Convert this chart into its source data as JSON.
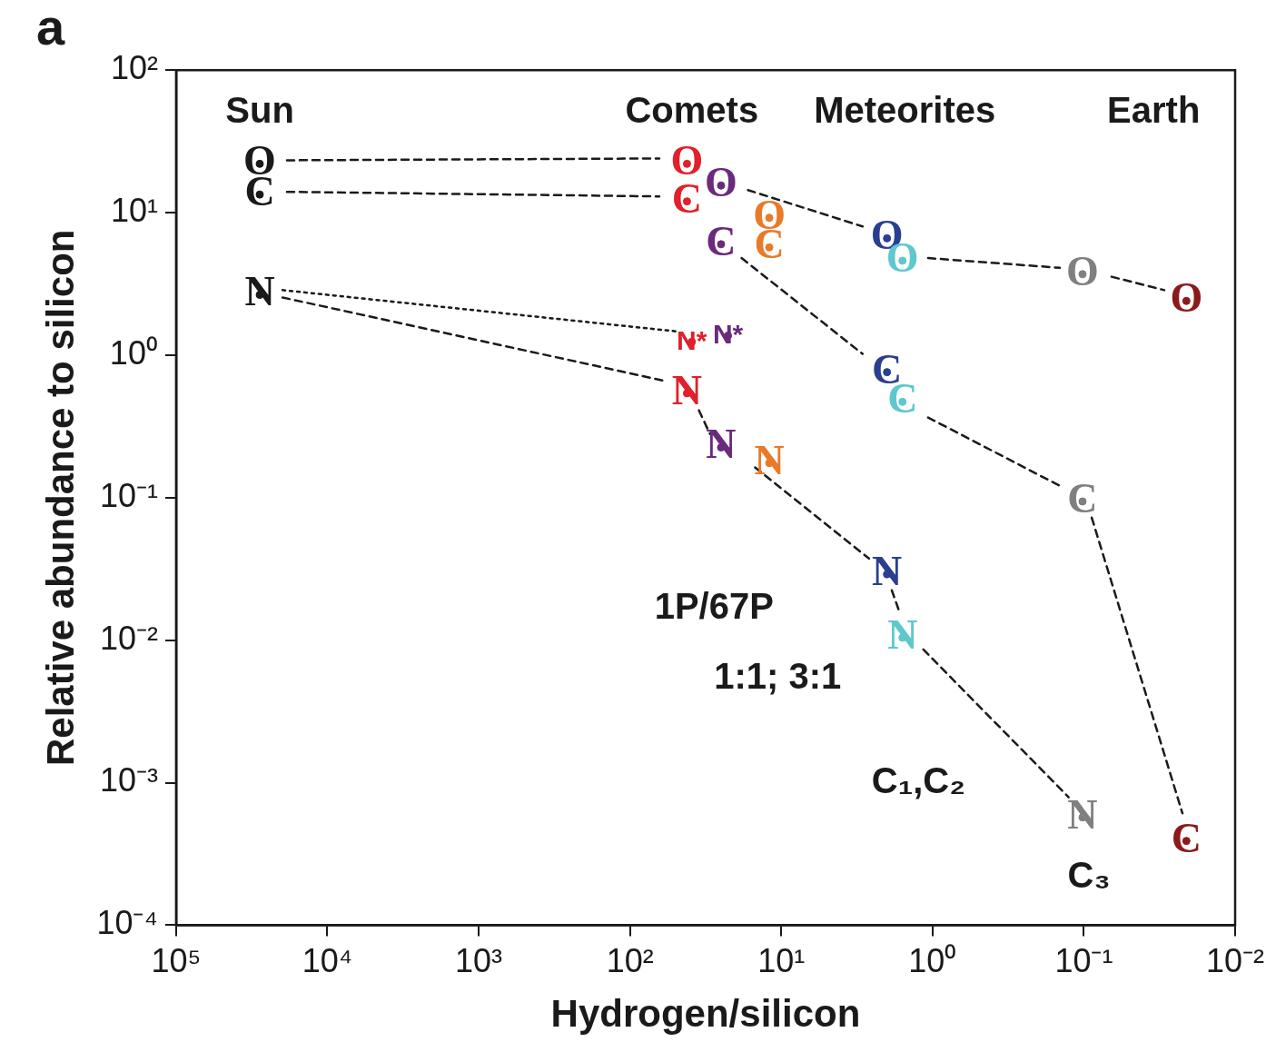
{
  "chart_data": {
    "type": "scatter",
    "title": "a",
    "xlabel": "Hydrogen/silicon",
    "ylabel": "Relative abundance to silicon",
    "log": "xy",
    "xlim": [
      100000,
      0.01
    ],
    "ylim": [
      0.0001,
      100
    ],
    "xticks": [
      {
        "value": 100000,
        "label": "10⁵"
      },
      {
        "value": 10000,
        "label": "10⁴"
      },
      {
        "value": 1000,
        "label": "10³"
      },
      {
        "value": 100,
        "label": "10²"
      },
      {
        "value": 10,
        "label": "10¹"
      },
      {
        "value": 1,
        "label": "10⁰"
      },
      {
        "value": 0.1,
        "label": "10⁻¹"
      },
      {
        "value": 0.01,
        "label": "10⁻²"
      }
    ],
    "yticks": [
      {
        "value": 0.0001,
        "label": "10⁻⁴"
      },
      {
        "value": 0.001,
        "label": "10⁻³"
      },
      {
        "value": 0.01,
        "label": "10⁻²"
      },
      {
        "value": 0.1,
        "label": "10⁻¹"
      },
      {
        "value": 1,
        "label": "10⁰"
      },
      {
        "value": 10,
        "label": "10¹"
      },
      {
        "value": 100,
        "label": "10²"
      }
    ],
    "series": [
      {
        "type": "scatter",
        "color": "#1a1a1a",
        "x": [
          28000,
          28000,
          28000
        ],
        "values": [
          22,
          13.4,
          2.65
        ],
        "value_labels": [
          "O",
          "C",
          "N"
        ]
      },
      {
        "type": "scatter",
        "color": "#e0202a",
        "x": [
          42,
          42,
          39,
          42
        ],
        "values": [
          22,
          12,
          1.24,
          0.54
        ],
        "value_labels": [
          "O",
          "C",
          "N*",
          "N"
        ]
      },
      {
        "type": "scatter",
        "color": "#6a2a7e",
        "x": [
          25,
          25,
          22.5,
          25
        ],
        "values": [
          15.5,
          6,
          1.37,
          0.225
        ],
        "value_labels": [
          "O",
          "C",
          "N*",
          "N"
        ]
      },
      {
        "type": "scatter",
        "color": "#e87a2a",
        "x": [
          12,
          12,
          12
        ],
        "values": [
          9.2,
          5.7,
          0.175
        ],
        "value_labels": [
          "O",
          "C",
          "N"
        ]
      },
      {
        "type": "scatter",
        "color": "#2a3f8f",
        "x": [
          2,
          2,
          2
        ],
        "values": [
          6.6,
          0.76,
          0.029
        ],
        "value_labels": [
          "O",
          "C",
          "N"
        ]
      },
      {
        "type": "scatter",
        "color": "#5ec8cc",
        "x": [
          1.58,
          1.58,
          1.58
        ],
        "values": [
          4.6,
          0.47,
          0.0104
        ],
        "value_labels": [
          "O",
          "C",
          "N"
        ]
      },
      {
        "type": "scatter",
        "color": "#808080",
        "x": [
          0.102,
          0.102,
          0.102
        ],
        "values": [
          3.7,
          0.094,
          0.00057
        ],
        "value_labels": [
          "O",
          "C",
          "N"
        ]
      },
      {
        "type": "scatter",
        "color": "#8b1a1a",
        "x": [
          0.021,
          0.021
        ],
        "values": [
          2.4,
          0.00039
        ],
        "value_labels": [
          "O",
          "C"
        ]
      },
      {
        "type": "line",
        "line_style": "dashed",
        "color": "#1a1a1a",
        "x": [
          18500,
          64
        ],
        "values": [
          23.3,
          24
        ]
      },
      {
        "type": "line",
        "line_style": "dashed",
        "color": "#1a1a1a",
        "x": [
          18500,
          64
        ],
        "values": [
          14,
          13
        ]
      },
      {
        "type": "line",
        "line_style": "dashed",
        "color": "#1a1a1a",
        "x": [
          16.6,
          2.9
        ],
        "values": [
          14.4,
          8
        ]
      },
      {
        "type": "line",
        "line_style": "dashed",
        "color": "#1a1a1a",
        "x": [
          1.07,
          0.144
        ],
        "values": [
          4.8,
          4.1
        ]
      },
      {
        "type": "line",
        "line_style": "dashed",
        "color": "#1a1a1a",
        "x": [
          0.0655,
          0.0294
        ],
        "values": [
          3.55,
          2.86
        ]
      },
      {
        "type": "line",
        "line_style": "dashed",
        "color": "#1a1a1a",
        "x": [
          18.3,
          2.9
        ],
        "values": [
          4.8,
          1.02
        ]
      },
      {
        "type": "line",
        "line_style": "dashed",
        "color": "#1a1a1a",
        "x": [
          1.07,
          0.144
        ],
        "values": [
          0.365,
          0.121
        ]
      },
      {
        "type": "line",
        "line_style": "dashed",
        "color": "#1a1a1a",
        "x": [
          0.0887,
          0.0223
        ],
        "values": [
          0.0724,
          0.00061
        ]
      },
      {
        "type": "line",
        "line_style": "dashed",
        "color": "#1a1a1a",
        "x": [
          19800,
          57.7
        ],
        "values": [
          2.54,
          0.656
        ]
      },
      {
        "type": "line",
        "line_style": "dotted",
        "color": "#1a1a1a",
        "x": [
          19800,
          50
        ],
        "values": [
          2.86,
          1.47
        ]
      },
      {
        "type": "line",
        "line_style": "dashed",
        "color": "#1a1a1a",
        "x": [
          35,
          29.6
        ],
        "values": [
          0.41,
          0.28
        ]
      },
      {
        "type": "line",
        "line_style": "dashed",
        "color": "#1a1a1a",
        "x": [
          14.9,
          2.63
        ],
        "values": [
          0.163,
          0.0374
        ]
      },
      {
        "type": "line",
        "line_style": "dashed",
        "color": "#1a1a1a",
        "x": [
          1.86,
          1.67
        ],
        "values": [
          0.0224,
          0.0162
        ]
      },
      {
        "type": "line",
        "line_style": "dashed",
        "color": "#1a1a1a",
        "x": [
          1.15,
          0.126
        ],
        "values": [
          0.0086,
          0.00079
        ]
      }
    ],
    "annotations": [
      "Sun",
      "Comets",
      "Meteorites",
      "Earth",
      "1P/67P",
      "1:1; 3:1",
      "C₁,C₂",
      "C₃"
    ]
  }
}
